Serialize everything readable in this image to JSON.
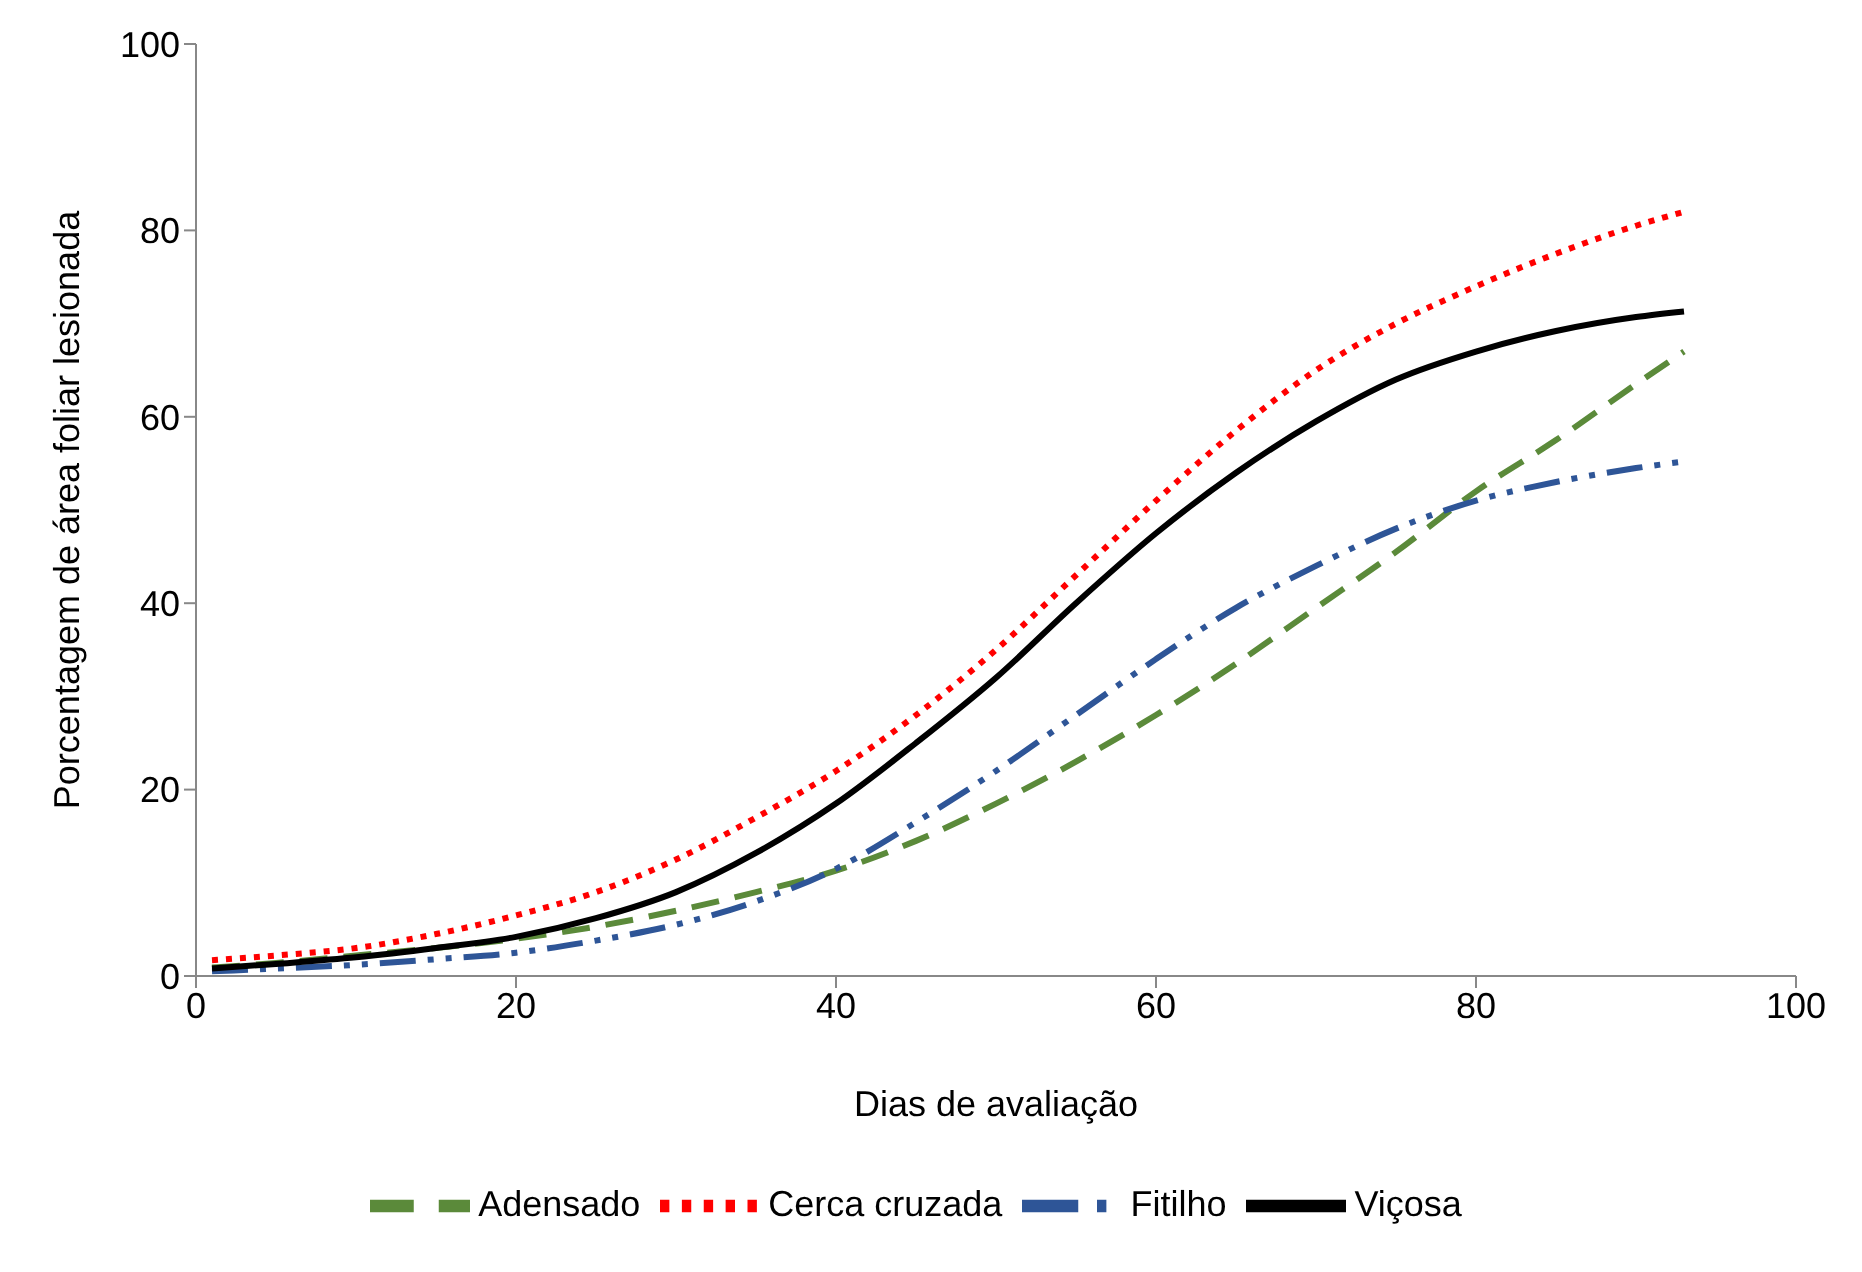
{
  "chart_data": {
    "type": "line",
    "xlabel": "Dias de avaliação",
    "ylabel": "Porcentagem de área foliar lesionada",
    "xlim": [
      0,
      100
    ],
    "xticks": [
      0,
      20,
      40,
      60,
      80,
      100
    ],
    "ylim": [
      0,
      100
    ],
    "yticks": [
      0,
      20,
      40,
      60,
      80,
      100
    ],
    "grid": false,
    "legend": "bottom",
    "marker": "none",
    "x": [
      1,
      5,
      10,
      15,
      20,
      25,
      30,
      35,
      40,
      45,
      50,
      55,
      60,
      65,
      70,
      75,
      80,
      85,
      90,
      93
    ],
    "series": [
      {
        "name": "Adensado",
        "color": "#5b8a3a",
        "line_style": "dashed",
        "values": [
          0.9,
          1.4,
          2.2,
          3,
          4,
          5.3,
          7,
          9,
          11.3,
          14.5,
          18.5,
          23,
          28,
          33.5,
          39.5,
          45.5,
          52,
          57.5,
          63.5,
          67
        ]
      },
      {
        "name": "Cerca cruzada",
        "color": "#ff0000",
        "line_style": "dotted",
        "values": [
          1.7,
          2.2,
          3,
          4.5,
          6.5,
          9,
          12.5,
          17,
          22,
          28,
          35,
          43,
          51,
          58.5,
          65,
          70,
          74,
          77.5,
          80.5,
          82
        ]
      },
      {
        "name": "Fitilho",
        "color": "#2e5597",
        "line_style": "dashdot",
        "values": [
          0.5,
          0.8,
          1.2,
          1.8,
          2.5,
          3.8,
          5.5,
          8,
          11.5,
          16.5,
          22,
          28,
          34,
          39.5,
          44,
          48,
          51,
          53,
          54.5,
          55.2
        ]
      },
      {
        "name": "Viçosa",
        "color": "#000000",
        "line_style": "solid",
        "values": [
          0.8,
          1.3,
          2,
          3,
          4.2,
          6.2,
          9,
          13.2,
          18.5,
          25,
          32,
          40,
          47.5,
          54,
          59.5,
          64,
          67,
          69.2,
          70.7,
          71.3
        ]
      }
    ]
  }
}
